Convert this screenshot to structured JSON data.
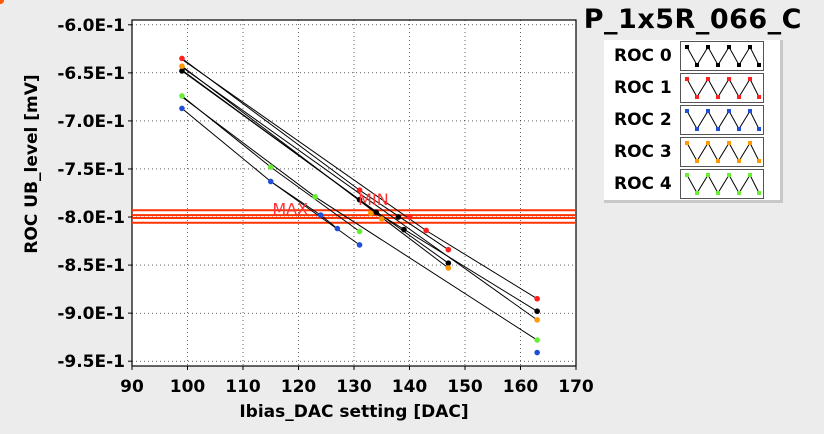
{
  "header": {
    "title": "P_1x5R_066_C"
  },
  "chart_data": {
    "type": "scatter",
    "title": "P_1x5R_066_C",
    "xlabel": "Ibias_DAC setting [DAC]",
    "ylabel": "ROC UB_level [mV]",
    "xlim": [
      90,
      170
    ],
    "ylim": [
      -0.955,
      -0.595
    ],
    "xticks": [
      90,
      100,
      110,
      120,
      130,
      140,
      150,
      160,
      170
    ],
    "xtick_labels": [
      "90",
      "100",
      "110",
      "120",
      "130",
      "140",
      "150",
      "160",
      "170"
    ],
    "yticks": [
      -0.6,
      -0.65,
      -0.7,
      -0.75,
      -0.8,
      -0.85,
      -0.9,
      -0.95
    ],
    "ytick_labels": [
      "-6.0E-1",
      "-6.5E-1",
      "-7.0E-1",
      "-7.5E-1",
      "-8.0E-1",
      "-8.5E-1",
      "-9.0E-1",
      "-9.5E-1"
    ],
    "grid": true,
    "legend_position": "top-right",
    "hlines": [
      -0.793,
      -0.798,
      -0.801,
      -0.806
    ],
    "hline_color": "#ff3300",
    "annotations": [
      {
        "text": "MAX",
        "x": 118.5,
        "y": -0.791,
        "color": "#ff3333"
      },
      {
        "text": "MIN",
        "x": 133.5,
        "y": -0.781,
        "color": "#ff3333"
      }
    ],
    "highlight_points": [
      {
        "x": 124,
        "y": -0.795
      },
      {
        "x": 125,
        "y": -0.795
      },
      {
        "x": 132,
        "y": -0.795
      },
      {
        "x": 133.5,
        "y": -0.797
      },
      {
        "x": 138.5,
        "y": -0.797
      },
      {
        "x": 140,
        "y": -0.8
      }
    ],
    "series": [
      {
        "name": "ROC 0",
        "color": "#000000",
        "lines": [
          [
            [
              99,
              -0.648
            ],
            [
              131,
              -0.782
            ],
            [
              147,
              -0.848
            ]
          ],
          [
            [
              99,
              -0.647
            ],
            [
              134,
              -0.795
            ],
            [
              163,
              -0.898
            ]
          ]
        ],
        "points": [
          [
            99,
            -0.648
          ],
          [
            131,
            -0.782
          ],
          [
            147,
            -0.848
          ],
          [
            134,
            -0.795
          ],
          [
            163,
            -0.898
          ],
          [
            138,
            -0.8
          ],
          [
            139,
            -0.813
          ]
        ]
      },
      {
        "name": "ROC 1",
        "color": "#ff1f1f",
        "lines": [
          [
            [
              99,
              -0.635
            ],
            [
              131,
              -0.772
            ],
            [
              147,
              -0.834
            ]
          ],
          [
            [
              99,
              -0.636
            ],
            [
              143,
              -0.814
            ],
            [
              163,
              -0.885
            ]
          ]
        ],
        "points": [
          [
            99,
            -0.635
          ],
          [
            131,
            -0.772
          ],
          [
            147,
            -0.834
          ],
          [
            143,
            -0.814
          ],
          [
            163,
            -0.885
          ],
          [
            140,
            -0.8
          ]
        ]
      },
      {
        "name": "ROC 2",
        "color": "#1f4fd8",
        "lines": [
          [
            [
              99,
              -0.687
            ],
            [
              115,
              -0.763
            ],
            [
              131,
              -0.829
            ]
          ],
          [
            [
              115,
              -0.763
            ],
            [
              124,
              -0.798
            ],
            [
              127,
              -0.812
            ]
          ]
        ],
        "points": [
          [
            99,
            -0.687
          ],
          [
            115,
            -0.763
          ],
          [
            124,
            -0.798
          ],
          [
            127,
            -0.812
          ],
          [
            131,
            -0.829
          ],
          [
            163,
            -0.941
          ]
        ]
      },
      {
        "name": "ROC 3",
        "color": "#ff9900",
        "lines": [
          [
            [
              99,
              -0.643
            ],
            [
              147,
              -0.853
            ]
          ],
          [
            [
              99,
              -0.644
            ],
            [
              163,
              -0.907
            ]
          ]
        ],
        "points": [
          [
            99,
            -0.643
          ],
          [
            147,
            -0.853
          ],
          [
            163,
            -0.907
          ],
          [
            135,
            -0.802
          ],
          [
            133,
            -0.796
          ]
        ]
      },
      {
        "name": "ROC 4",
        "color": "#66ee33",
        "lines": [
          [
            [
              99,
              -0.674
            ],
            [
              115,
              -0.748
            ],
            [
              131,
              -0.815
            ]
          ],
          [
            [
              99,
              -0.675
            ],
            [
              123,
              -0.779
            ],
            [
              163,
              -0.928
            ]
          ]
        ],
        "points": [
          [
            99,
            -0.674
          ],
          [
            115,
            -0.748
          ],
          [
            123,
            -0.779
          ],
          [
            131,
            -0.815
          ],
          [
            163,
            -0.928
          ]
        ]
      }
    ]
  }
}
